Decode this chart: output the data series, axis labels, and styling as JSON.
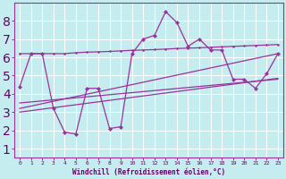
{
  "xlabel": "Windchill (Refroidissement éolien,°C)",
  "background_color": "#c5ecee",
  "grid_color": "#b0dde0",
  "line_color": "#993399",
  "xlim": [
    -0.5,
    23.5
  ],
  "ylim": [
    0.5,
    9.0
  ],
  "xticks": [
    0,
    1,
    2,
    3,
    4,
    5,
    6,
    7,
    8,
    9,
    10,
    11,
    12,
    13,
    14,
    15,
    16,
    17,
    18,
    19,
    20,
    21,
    22,
    23
  ],
  "yticks": [
    1,
    2,
    3,
    4,
    5,
    6,
    7,
    8
  ],
  "line1_x": [
    0,
    1,
    2,
    3,
    4,
    5,
    6,
    7,
    8,
    9,
    10,
    11,
    12,
    13,
    14,
    15,
    16,
    17,
    18,
    19,
    20,
    21,
    22,
    23
  ],
  "line1_y": [
    4.4,
    6.2,
    6.2,
    3.2,
    1.9,
    1.8,
    4.3,
    4.3,
    2.1,
    2.2,
    6.2,
    7.0,
    7.2,
    8.5,
    7.9,
    6.6,
    7.0,
    6.4,
    6.4,
    4.8,
    4.8,
    4.3,
    5.1,
    6.2
  ],
  "line2_x": [
    0,
    1,
    2,
    3,
    4,
    5,
    6,
    7,
    8,
    9,
    10,
    11,
    12,
    13,
    14,
    15,
    16,
    17,
    18,
    19,
    20,
    21,
    22,
    23
  ],
  "line2_y": [
    6.2,
    6.2,
    6.2,
    6.2,
    6.2,
    6.25,
    6.28,
    6.3,
    6.32,
    6.35,
    6.38,
    6.4,
    6.42,
    6.45,
    6.48,
    6.5,
    6.52,
    6.55,
    6.57,
    6.6,
    6.62,
    6.65,
    6.67,
    6.7
  ],
  "line3_x": [
    0,
    23
  ],
  "line3_y": [
    3.5,
    4.8
  ],
  "line4_x": [
    0,
    23
  ],
  "line4_y": [
    3.0,
    4.85
  ],
  "line5_x": [
    0,
    23
  ],
  "line5_y": [
    3.2,
    6.2
  ]
}
